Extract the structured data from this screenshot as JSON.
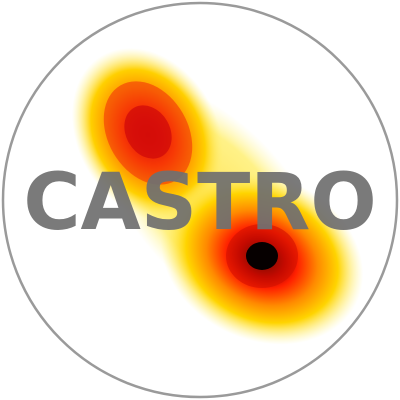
{
  "logo": {
    "wordmark": "CASTRO",
    "colors": {
      "ring": "#9a9a9a",
      "wordmark": "#707070",
      "background": "#ffffff",
      "heat_outer": "#fff27a",
      "heat_mid": "#ffb000",
      "heat_inner": "#e8140a",
      "heat_core": "#120000"
    }
  }
}
